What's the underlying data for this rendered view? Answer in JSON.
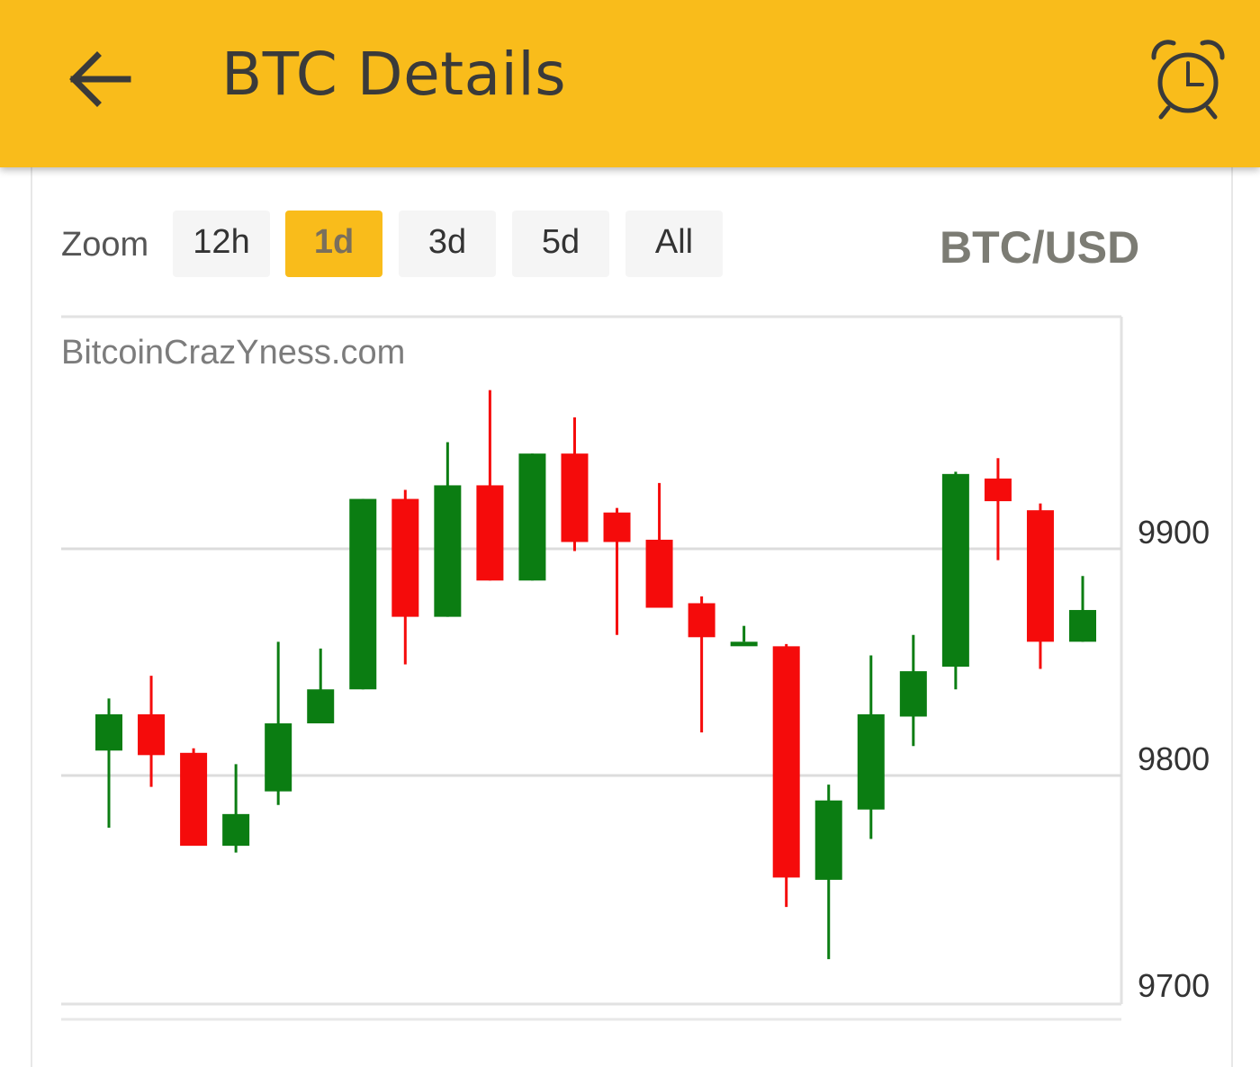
{
  "appbar": {
    "title": "BTC Details",
    "background": "#f9bc1b",
    "back_icon": "arrow-left-icon",
    "alarm_icon": "alarm-clock-icon"
  },
  "zoom": {
    "label": "Zoom",
    "options": [
      "12h",
      "1d",
      "3d",
      "5d",
      "All"
    ],
    "selected": "1d"
  },
  "pair": "BTC/USD",
  "chart_data": {
    "type": "candlestick",
    "watermark": "BitcoinCrazYness.com",
    "ylim": [
      9700,
      9900
    ],
    "y_ticks": [
      9700,
      9800,
      9900
    ],
    "y_axis_side": "right",
    "grid": true,
    "colors": {
      "up": "#0b7d12",
      "down": "#f50b0b"
    },
    "candles": [
      {
        "open": 9811,
        "high": 9834,
        "low": 9777,
        "close": 9827
      },
      {
        "open": 9827,
        "high": 9844,
        "low": 9795,
        "close": 9809
      },
      {
        "open": 9810,
        "high": 9812,
        "low": 9770,
        "close": 9769
      },
      {
        "open": 9769,
        "high": 9805,
        "low": 9766,
        "close": 9783
      },
      {
        "open": 9793,
        "high": 9859,
        "low": 9787,
        "close": 9823
      },
      {
        "open": 9823,
        "high": 9856,
        "low": 9823,
        "close": 9838
      },
      {
        "open": 9838,
        "high": 9922,
        "low": 9838,
        "close": 9922
      },
      {
        "open": 9922,
        "high": 9926,
        "low": 9849,
        "close": 9870
      },
      {
        "open": 9870,
        "high": 9947,
        "low": 9870,
        "close": 9928
      },
      {
        "open": 9928,
        "high": 9970,
        "low": 9886,
        "close": 9886
      },
      {
        "open": 9886,
        "high": 9942,
        "low": 9886,
        "close": 9942
      },
      {
        "open": 9942,
        "high": 9958,
        "low": 9899,
        "close": 9903
      },
      {
        "open": 9916,
        "high": 9918,
        "low": 9862,
        "close": 9903
      },
      {
        "open": 9904,
        "high": 9929,
        "low": 9874,
        "close": 9874
      },
      {
        "open": 9876,
        "high": 9879,
        "low": 9819,
        "close": 9861
      },
      {
        "open": 9859,
        "high": 9866,
        "low": 9859,
        "close": 9859
      },
      {
        "open": 9857,
        "high": 9858,
        "low": 9742,
        "close": 9755
      },
      {
        "open": 9754,
        "high": 9796,
        "low": 9719,
        "close": 9789
      },
      {
        "open": 9785,
        "high": 9853,
        "low": 9772,
        "close": 9827
      },
      {
        "open": 9826,
        "high": 9862,
        "low": 9813,
        "close": 9846
      },
      {
        "open": 9848,
        "high": 9934,
        "low": 9838,
        "close": 9933
      },
      {
        "open": 9931,
        "high": 9940,
        "low": 9895,
        "close": 9921
      },
      {
        "open": 9917,
        "high": 9920,
        "low": 9847,
        "close": 9859
      },
      {
        "open": 9859,
        "high": 9888,
        "low": 9859,
        "close": 9873
      }
    ]
  }
}
